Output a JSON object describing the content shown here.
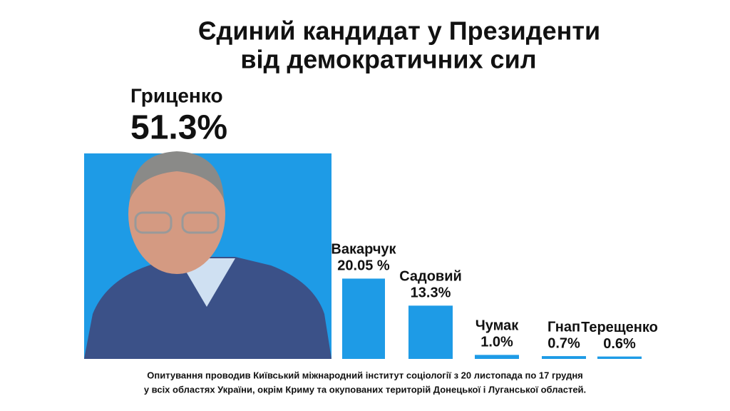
{
  "chart_data": {
    "type": "bar",
    "title": [
      "Єдиний кандидат у Президенти",
      "від демократичних сил"
    ],
    "categories": [
      "Гриценко",
      "Вакарчук",
      "Садовий",
      "Чумак",
      "Гнап",
      "Терещенко"
    ],
    "values": [
      51.3,
      20.05,
      13.3,
      1.0,
      0.7,
      0.6
    ],
    "value_labels": [
      "51.3%",
      "20.05 %",
      "13.3%",
      "1.0%",
      "0.7%",
      "0.6%"
    ],
    "color": "#1e9be6",
    "note": [
      "Опитування проводив Київський міжнародний інститут соціології з 20 листопада по 17 грудня",
      "у всіх областях України, окрім Криму та окупованих територій Донецької і Луганської областей."
    ]
  }
}
